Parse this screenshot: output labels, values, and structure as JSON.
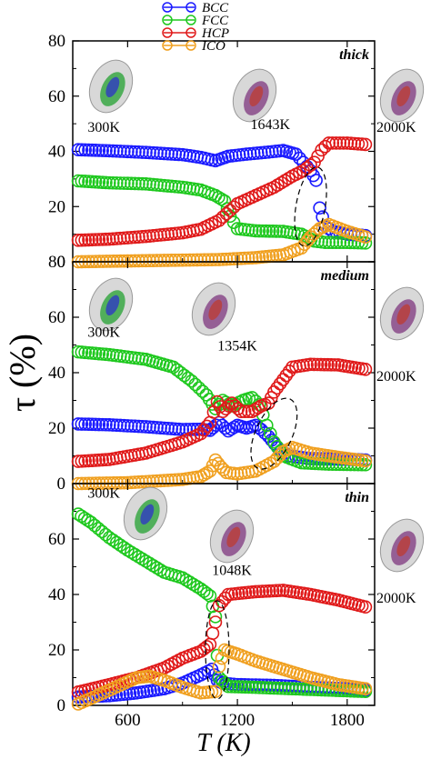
{
  "chart_data": [
    {
      "type": "scatter",
      "panel_label": "thick",
      "xlim": [
        300,
        1950
      ],
      "ylim": [
        0,
        80
      ],
      "yticks": [
        "0",
        "20",
        "40",
        "60",
        "80"
      ],
      "series": [
        {
          "name": "BCC",
          "color": "#1a1aff",
          "points": [
            [
              330,
              40.6
            ],
            [
              500,
              40.2
            ],
            [
              700,
              39.6
            ],
            [
              900,
              38.8
            ],
            [
              1000,
              37.8
            ],
            [
              1080,
              36.6
            ],
            [
              1150,
              38.2
            ],
            [
              1250,
              39.0
            ],
            [
              1350,
              39.6
            ],
            [
              1450,
              40.3
            ],
            [
              1520,
              39.0
            ],
            [
              1560,
              36.0
            ],
            [
              1600,
              33.0
            ],
            [
              1630,
              29.5
            ],
            [
              1650,
              19.5
            ],
            [
              1680,
              13.0
            ],
            [
              1720,
              11.0
            ],
            [
              1800,
              10.0
            ],
            [
              1900,
              9.5
            ]
          ]
        },
        {
          "name": "FCC",
          "color": "#1ec81e",
          "points": [
            [
              330,
              29.3
            ],
            [
              500,
              28.6
            ],
            [
              700,
              28.2
            ],
            [
              900,
              27.0
            ],
            [
              1000,
              26.0
            ],
            [
              1080,
              24.0
            ],
            [
              1130,
              22.0
            ],
            [
              1160,
              16.5
            ],
            [
              1200,
              12.0
            ],
            [
              1300,
              11.2
            ],
            [
              1450,
              11.0
            ],
            [
              1550,
              10.0
            ],
            [
              1620,
              7.5
            ],
            [
              1680,
              7.0
            ],
            [
              1800,
              7.0
            ],
            [
              1900,
              6.8
            ]
          ]
        },
        {
          "name": "HCP",
          "color": "#e01a1a",
          "points": [
            [
              330,
              7.8
            ],
            [
              500,
              8.2
            ],
            [
              700,
              9.2
            ],
            [
              900,
              10.5
            ],
            [
              1000,
              11.8
            ],
            [
              1100,
              15.0
            ],
            [
              1200,
              21.0
            ],
            [
              1300,
              24.0
            ],
            [
              1400,
              27.0
            ],
            [
              1500,
              31.0
            ],
            [
              1560,
              33.0
            ],
            [
              1620,
              36.0
            ],
            [
              1660,
              40.5
            ],
            [
              1700,
              43.0
            ],
            [
              1800,
              43.0
            ],
            [
              1900,
              42.5
            ]
          ]
        },
        {
          "name": "ICO",
          "color": "#f0a020",
          "points": [
            [
              330,
              0.0
            ],
            [
              600,
              0.3
            ],
            [
              900,
              0.6
            ],
            [
              1100,
              0.8
            ],
            [
              1300,
              1.5
            ],
            [
              1450,
              2.5
            ],
            [
              1550,
              5.0
            ],
            [
              1600,
              9.0
            ],
            [
              1650,
              12.0
            ],
            [
              1700,
              13.5
            ],
            [
              1800,
              11.0
            ],
            [
              1900,
              9.0
            ]
          ]
        }
      ],
      "annotations": [
        {
          "text": "300K",
          "x": 470,
          "y": 47
        },
        {
          "text": "1643K",
          "x": 1380,
          "y": 48
        },
        {
          "text": "2000K",
          "x": 1950,
          "y": 47
        }
      ]
    },
    {
      "type": "scatter",
      "panel_label": "medium",
      "xlim": [
        300,
        1950
      ],
      "ylim": [
        0,
        80
      ],
      "yticks": [
        "0",
        "20",
        "40",
        "60",
        "80"
      ],
      "series": [
        {
          "name": "BCC",
          "color": "#1a1aff",
          "points": [
            [
              330,
              21.5
            ],
            [
              500,
              21.2
            ],
            [
              700,
              20.5
            ],
            [
              900,
              19.5
            ],
            [
              1000,
              19.6
            ],
            [
              1050,
              19.2
            ],
            [
              1100,
              22.0
            ],
            [
              1150,
              19.0
            ],
            [
              1200,
              21.0
            ],
            [
              1250,
              20.0
            ],
            [
              1300,
              21.0
            ],
            [
              1330,
              19.5
            ],
            [
              1370,
              17.0
            ],
            [
              1420,
              13.0
            ],
            [
              1480,
              10.0
            ],
            [
              1600,
              9.0
            ],
            [
              1800,
              8.8
            ],
            [
              1900,
              8.5
            ]
          ]
        },
        {
          "name": "FCC",
          "color": "#1ec81e",
          "points": [
            [
              330,
              47.5
            ],
            [
              500,
              46.5
            ],
            [
              700,
              44.8
            ],
            [
              850,
              42.0
            ],
            [
              950,
              37.0
            ],
            [
              1030,
              32.0
            ],
            [
              1080,
              27.0
            ],
            [
              1120,
              30.0
            ],
            [
              1170,
              28.0
            ],
            [
              1230,
              30.0
            ],
            [
              1280,
              31.0
            ],
            [
              1320,
              28.5
            ],
            [
              1360,
              21.0
            ],
            [
              1400,
              15.0
            ],
            [
              1450,
              10.0
            ],
            [
              1550,
              7.5
            ],
            [
              1700,
              7.0
            ],
            [
              1900,
              6.8
            ]
          ]
        },
        {
          "name": "HCP",
          "color": "#e01a1a",
          "points": [
            [
              330,
              8.0
            ],
            [
              500,
              8.7
            ],
            [
              700,
              11.0
            ],
            [
              900,
              15.0
            ],
            [
              1000,
              18.0
            ],
            [
              1050,
              22.0
            ],
            [
              1090,
              29.5
            ],
            [
              1120,
              26.0
            ],
            [
              1170,
              29.0
            ],
            [
              1220,
              26.0
            ],
            [
              1280,
              26.0
            ],
            [
              1330,
              28.0
            ],
            [
              1370,
              29.0
            ],
            [
              1400,
              33.0
            ],
            [
              1450,
              37.5
            ],
            [
              1500,
              42.0
            ],
            [
              1600,
              43.0
            ],
            [
              1750,
              42.8
            ],
            [
              1900,
              41.2
            ]
          ]
        },
        {
          "name": "ICO",
          "color": "#f0a020",
          "points": [
            [
              330,
              0.0
            ],
            [
              600,
              0.3
            ],
            [
              900,
              1.5
            ],
            [
              1000,
              2.5
            ],
            [
              1050,
              4.5
            ],
            [
              1080,
              8.5
            ],
            [
              1110,
              6.0
            ],
            [
              1140,
              4.0
            ],
            [
              1200,
              3.5
            ],
            [
              1300,
              4.5
            ],
            [
              1400,
              8.0
            ],
            [
              1450,
              11.5
            ],
            [
              1500,
              13.0
            ],
            [
              1600,
              11.0
            ],
            [
              1750,
              9.5
            ],
            [
              1900,
              8.2
            ]
          ]
        }
      ],
      "annotations": [
        {
          "text": "300K",
          "x": 470,
          "y": 53
        },
        {
          "text": "1354K",
          "x": 1200,
          "y": 48
        },
        {
          "text": "2000K",
          "x": 1950,
          "y": 37
        }
      ]
    },
    {
      "type": "scatter",
      "panel_label": "thin",
      "xlim": [
        300,
        1950
      ],
      "ylim": [
        0,
        80
      ],
      "yticks": [
        "0",
        "20",
        "40",
        "60"
      ],
      "xticks": [
        "600",
        "1200",
        "1800"
      ],
      "series": [
        {
          "name": "BCC",
          "color": "#1a1aff",
          "points": [
            [
              330,
              3.0
            ],
            [
              500,
              3.5
            ],
            [
              650,
              4.5
            ],
            [
              800,
              6.0
            ],
            [
              900,
              8.0
            ],
            [
              1000,
              11.0
            ],
            [
              1060,
              13.0
            ],
            [
              1090,
              9.0
            ],
            [
              1120,
              8.0
            ],
            [
              1200,
              7.5
            ],
            [
              1400,
              7.2
            ],
            [
              1600,
              6.5
            ],
            [
              1800,
              6.0
            ],
            [
              1900,
              5.5
            ]
          ]
        },
        {
          "name": "FCC",
          "color": "#1ec81e",
          "points": [
            [
              330,
              69.0
            ],
            [
              400,
              66.0
            ],
            [
              500,
              60.5
            ],
            [
              600,
              56.0
            ],
            [
              700,
              52.0
            ],
            [
              800,
              48.0
            ],
            [
              900,
              46.0
            ],
            [
              1000,
              42.0
            ],
            [
              1050,
              39.5
            ],
            [
              1080,
              32.0
            ],
            [
              1090,
              18.0
            ],
            [
              1100,
              10.0
            ],
            [
              1150,
              6.8
            ],
            [
              1300,
              6.5
            ],
            [
              1500,
              6.0
            ],
            [
              1700,
              5.5
            ],
            [
              1900,
              5.0
            ]
          ]
        },
        {
          "name": "HCP",
          "color": "#e01a1a",
          "points": [
            [
              330,
              4.8
            ],
            [
              500,
              7.5
            ],
            [
              650,
              10.0
            ],
            [
              800,
              13.5
            ],
            [
              900,
              17.0
            ],
            [
              1000,
              19.5
            ],
            [
              1050,
              22.0
            ],
            [
              1080,
              30.0
            ],
            [
              1100,
              36.0
            ],
            [
              1150,
              40.0
            ],
            [
              1300,
              41.0
            ],
            [
              1450,
              41.5
            ],
            [
              1600,
              40.0
            ],
            [
              1750,
              38.0
            ],
            [
              1900,
              35.5
            ]
          ]
        },
        {
          "name": "ICO",
          "color": "#f0a020",
          "points": [
            [
              330,
              0.5
            ],
            [
              450,
              4.0
            ],
            [
              550,
              7.0
            ],
            [
              650,
              10.0
            ],
            [
              720,
              10.5
            ],
            [
              800,
              9.0
            ],
            [
              900,
              6.5
            ],
            [
              1000,
              4.5
            ],
            [
              1080,
              5.0
            ],
            [
              1100,
              14.0
            ],
            [
              1130,
              20.0
            ],
            [
              1200,
              18.5
            ],
            [
              1300,
              16.0
            ],
            [
              1450,
              13.0
            ],
            [
              1600,
              10.0
            ],
            [
              1750,
              7.5
            ],
            [
              1900,
              6.0
            ]
          ]
        }
      ],
      "annotations": [
        {
          "text": "300K",
          "x": 470,
          "y": 75
        },
        {
          "text": "1048K",
          "x": 1170,
          "y": 47
        },
        {
          "text": "2000K",
          "x": 1950,
          "y": 37
        }
      ]
    }
  ],
  "axes": {
    "xlabel": "T (K)",
    "ylabel": "τ (%)"
  }
}
